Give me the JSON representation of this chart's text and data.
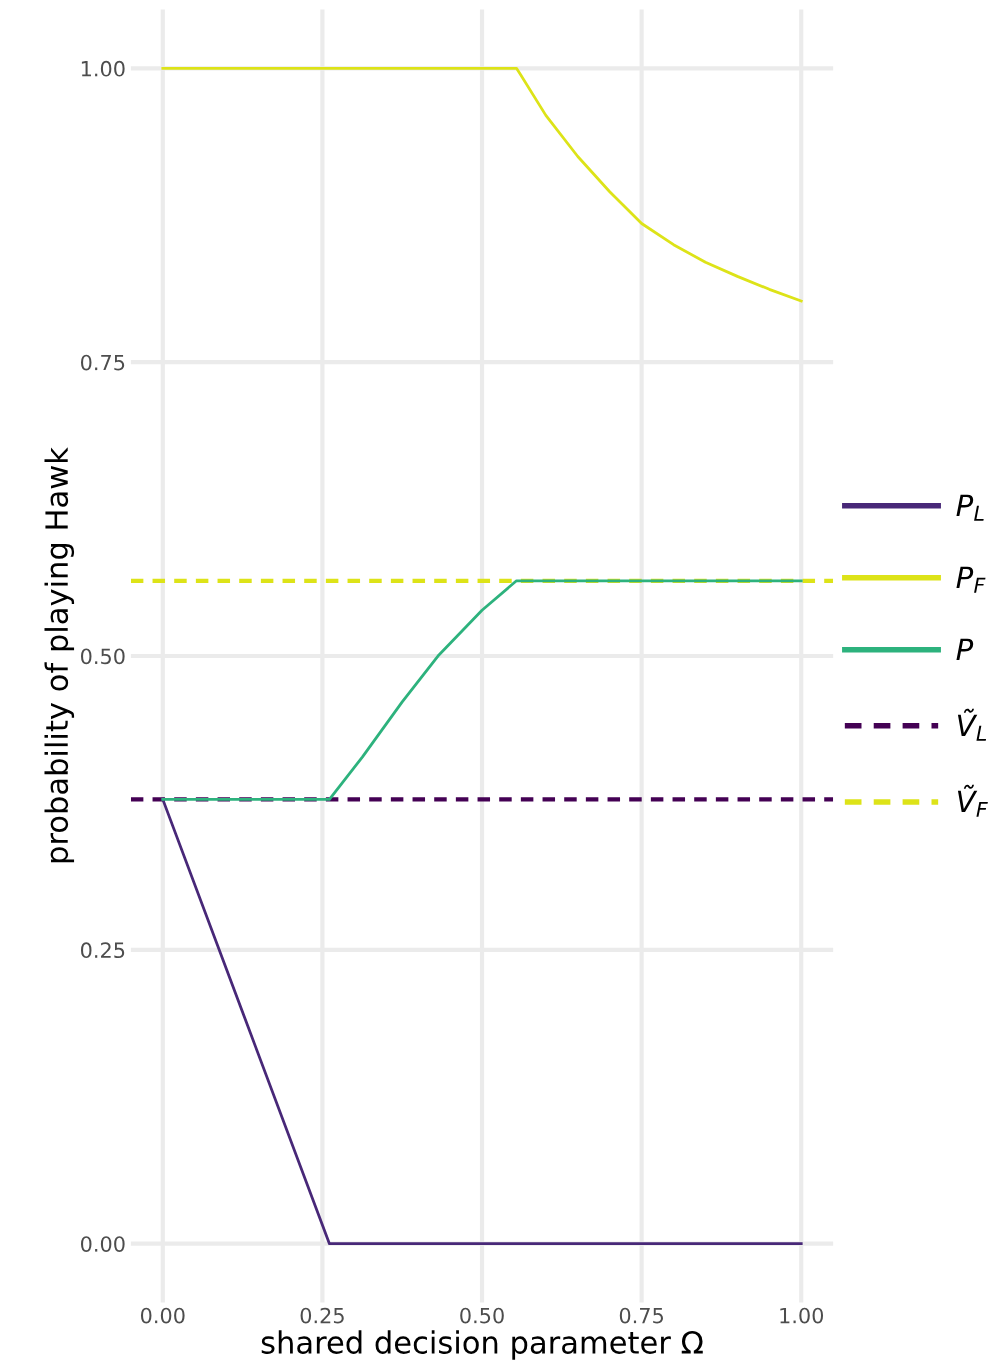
{
  "chart_data": {
    "type": "line",
    "xlabel": "shared decision parameter Ω",
    "ylabel": "probability of playing Hawk",
    "series": [
      {
        "name": "P$_{L}$",
        "color": "#482878",
        "x": [
          0,
          0.261,
          1
        ],
        "values": [
          0.378,
          0,
          0
        ]
      },
      {
        "name": "P$_{F}$",
        "color": "#dde318",
        "x": [
          0,
          0.554,
          0.56,
          0.6,
          0.65,
          0.7,
          0.75,
          0.8,
          0.85,
          0.9,
          0.95,
          1
        ],
        "values": [
          1,
          1,
          0.995,
          0.96,
          0.925,
          0.895,
          0.868,
          0.85,
          0.835,
          0.823,
          0.812,
          0.802
        ]
      },
      {
        "name": "P",
        "color": "#2db27d",
        "x": [
          0,
          0.261,
          0.3125,
          0.375,
          0.431,
          0.5,
          0.554,
          1
        ],
        "values": [
          0.378,
          0.378,
          0.414,
          0.461,
          0.5,
          0.539,
          0.564,
          0.564
        ]
      }
    ],
    "ref_lines": [
      {
        "axis": "y",
        "value": 0.378,
        "label": "Ṽ$_{L}$",
        "color": "#440154",
        "line_style": "dashed"
      },
      {
        "axis": "y",
        "value": 0.564,
        "label": "Ṽ$_{F}$",
        "color": "#dde318",
        "line_style": "dashed"
      }
    ],
    "xlim": [
      -0.05,
      1.05
    ],
    "ylim": [
      -0.05,
      1.05
    ],
    "xticks": [
      {
        "value": 0,
        "label": "0.00"
      },
      {
        "value": 0.25,
        "label": "0.25"
      },
      {
        "value": 0.5,
        "label": "0.50"
      },
      {
        "value": 0.75,
        "label": "0.75"
      },
      {
        "value": 1,
        "label": "1.00"
      }
    ],
    "yticks": [
      {
        "value": 0,
        "label": "0.00"
      },
      {
        "value": 0.25,
        "label": "0.25"
      },
      {
        "value": 0.5,
        "label": "0.50"
      },
      {
        "value": 0.75,
        "label": "0.75"
      },
      {
        "value": 1,
        "label": "1.00"
      }
    ],
    "grid": true,
    "legend": "right"
  }
}
